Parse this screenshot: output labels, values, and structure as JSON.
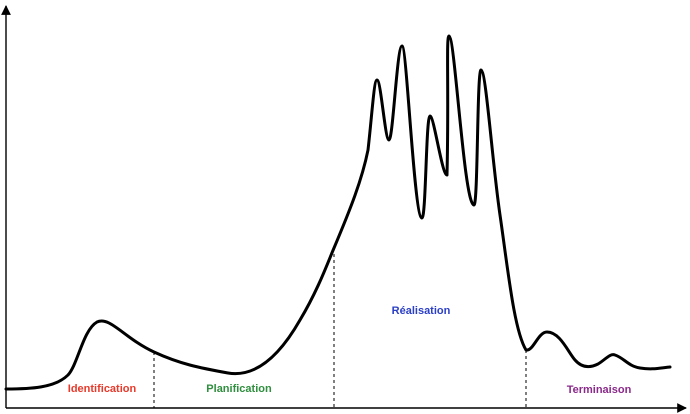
{
  "phases": {
    "identification": {
      "label": "Identification",
      "color": "#e8392a"
    },
    "planification": {
      "label": "Planification",
      "color": "#2f8f3e"
    },
    "realisation": {
      "label": "Réalisation",
      "color": "#2b3fc7"
    },
    "terminaison": {
      "label": "Terminaison",
      "color": "#8a2a8a"
    }
  },
  "colors": {
    "curve": "#000000",
    "axis": "#000000"
  },
  "style": {
    "boundaries": "dashed",
    "axes": "arrowed x and y axes, no ticks or labels"
  }
}
